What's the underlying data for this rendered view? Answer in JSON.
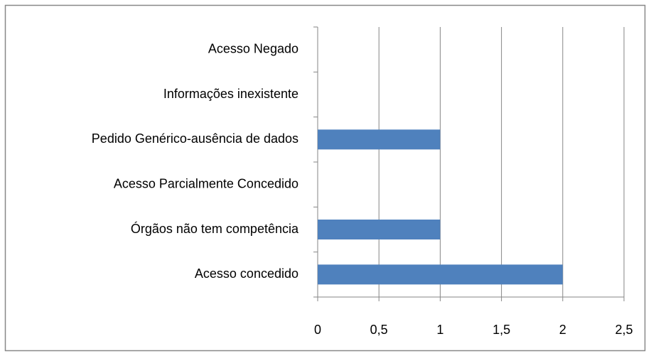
{
  "chart_data": {
    "type": "bar",
    "orientation": "horizontal",
    "categories": [
      "Acesso Negado",
      "Informações inexistente",
      "Pedido Genérico-ausência de dados",
      "Acesso Parcialmente Concedido",
      "Órgãos não tem competência",
      "Acesso concedido"
    ],
    "values": [
      0,
      0,
      1,
      0,
      1,
      2
    ],
    "color": "#4f81bd",
    "xlim": [
      0,
      2.5
    ],
    "xticks": [
      0,
      {
        "value": 0.5,
        "label": "0,5"
      },
      1,
      {
        "value": 1.5,
        "label": "1,5"
      },
      2,
      {
        "value": 2.5,
        "label": "2,5"
      }
    ],
    "grid": true
  }
}
